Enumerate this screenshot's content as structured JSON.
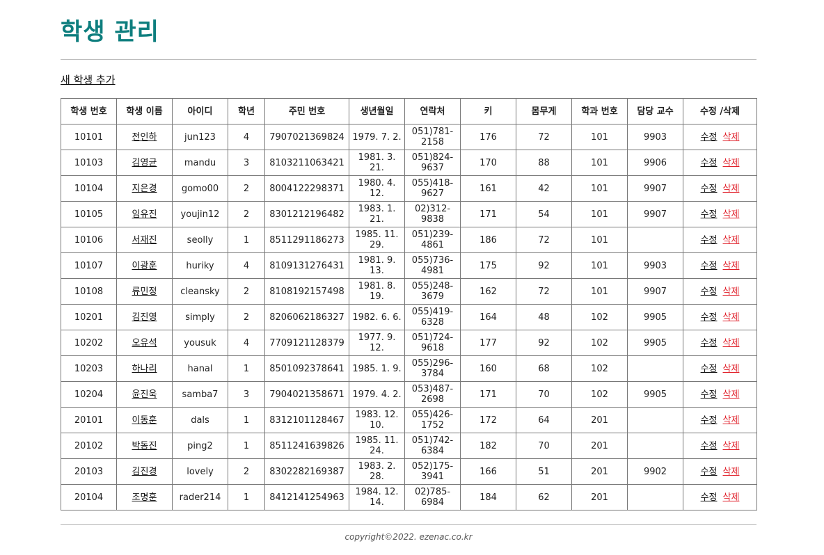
{
  "header": {
    "title": "학생 관리"
  },
  "actions": {
    "add_link": "새 학생 추가"
  },
  "table": {
    "headers": [
      "학생 번호",
      "학생 이름",
      "아이디",
      "학년",
      "주민 번호",
      "생년월일",
      "연락처",
      "키",
      "몸무게",
      "학과 번호",
      "담당 교수",
      "수정 /삭제"
    ],
    "edit_label": "수정",
    "delete_label": "삭제",
    "rows": [
      [
        "10101",
        "전인하",
        "jun123",
        "4",
        "7907021369824",
        "1979. 7. 2.",
        "051)781-2158",
        "176",
        "72",
        "101",
        "9903"
      ],
      [
        "10103",
        "김영균",
        "mandu",
        "3",
        "8103211063421",
        "1981. 3. 21.",
        "051)824-9637",
        "170",
        "88",
        "101",
        "9906"
      ],
      [
        "10104",
        "지은경",
        "gomo00",
        "2",
        "8004122298371",
        "1980. 4. 12.",
        "055)418-9627",
        "161",
        "42",
        "101",
        "9907"
      ],
      [
        "10105",
        "임유진",
        "youjin12",
        "2",
        "8301212196482",
        "1983. 1. 21.",
        "02)312-9838",
        "171",
        "54",
        "101",
        "9907"
      ],
      [
        "10106",
        "서재진",
        "seolly",
        "1",
        "8511291186273",
        "1985. 11. 29.",
        "051)239-4861",
        "186",
        "72",
        "101",
        ""
      ],
      [
        "10107",
        "이광훈",
        "huriky",
        "4",
        "8109131276431",
        "1981. 9. 13.",
        "055)736-4981",
        "175",
        "92",
        "101",
        "9903"
      ],
      [
        "10108",
        "류민정",
        "cleansky",
        "2",
        "8108192157498",
        "1981. 8. 19.",
        "055)248-3679",
        "162",
        "72",
        "101",
        "9907"
      ],
      [
        "10201",
        "김진영",
        "simply",
        "2",
        "8206062186327",
        "1982. 6. 6.",
        "055)419-6328",
        "164",
        "48",
        "102",
        "9905"
      ],
      [
        "10202",
        "오유석",
        "yousuk",
        "4",
        "7709121128379",
        "1977. 9. 12.",
        "051)724-9618",
        "177",
        "92",
        "102",
        "9905"
      ],
      [
        "10203",
        "하나리",
        "hanal",
        "1",
        "8501092378641",
        "1985. 1. 9.",
        "055)296-3784",
        "160",
        "68",
        "102",
        ""
      ],
      [
        "10204",
        "윤진욱",
        "samba7",
        "3",
        "7904021358671",
        "1979. 4. 2.",
        "053)487-2698",
        "171",
        "70",
        "102",
        "9905"
      ],
      [
        "20101",
        "이동훈",
        "dals",
        "1",
        "8312101128467",
        "1983. 12. 10.",
        "055)426-1752",
        "172",
        "64",
        "201",
        ""
      ],
      [
        "20102",
        "박동진",
        "ping2",
        "1",
        "8511241639826",
        "1985. 11. 24.",
        "051)742-6384",
        "182",
        "70",
        "201",
        ""
      ],
      [
        "20103",
        "김진경",
        "lovely",
        "2",
        "8302282169387",
        "1983. 2. 28.",
        "052)175-3941",
        "166",
        "51",
        "201",
        "9902"
      ],
      [
        "20104",
        "조명훈",
        "rader214",
        "1",
        "8412141254963",
        "1984. 12. 14.",
        "02)785-6984",
        "184",
        "62",
        "201",
        ""
      ]
    ]
  },
  "footer": {
    "copyright": "copyright©2022. ezenac.co.kr"
  },
  "colors": {
    "title": "#0e7e7e",
    "delete": "#e0202a"
  }
}
